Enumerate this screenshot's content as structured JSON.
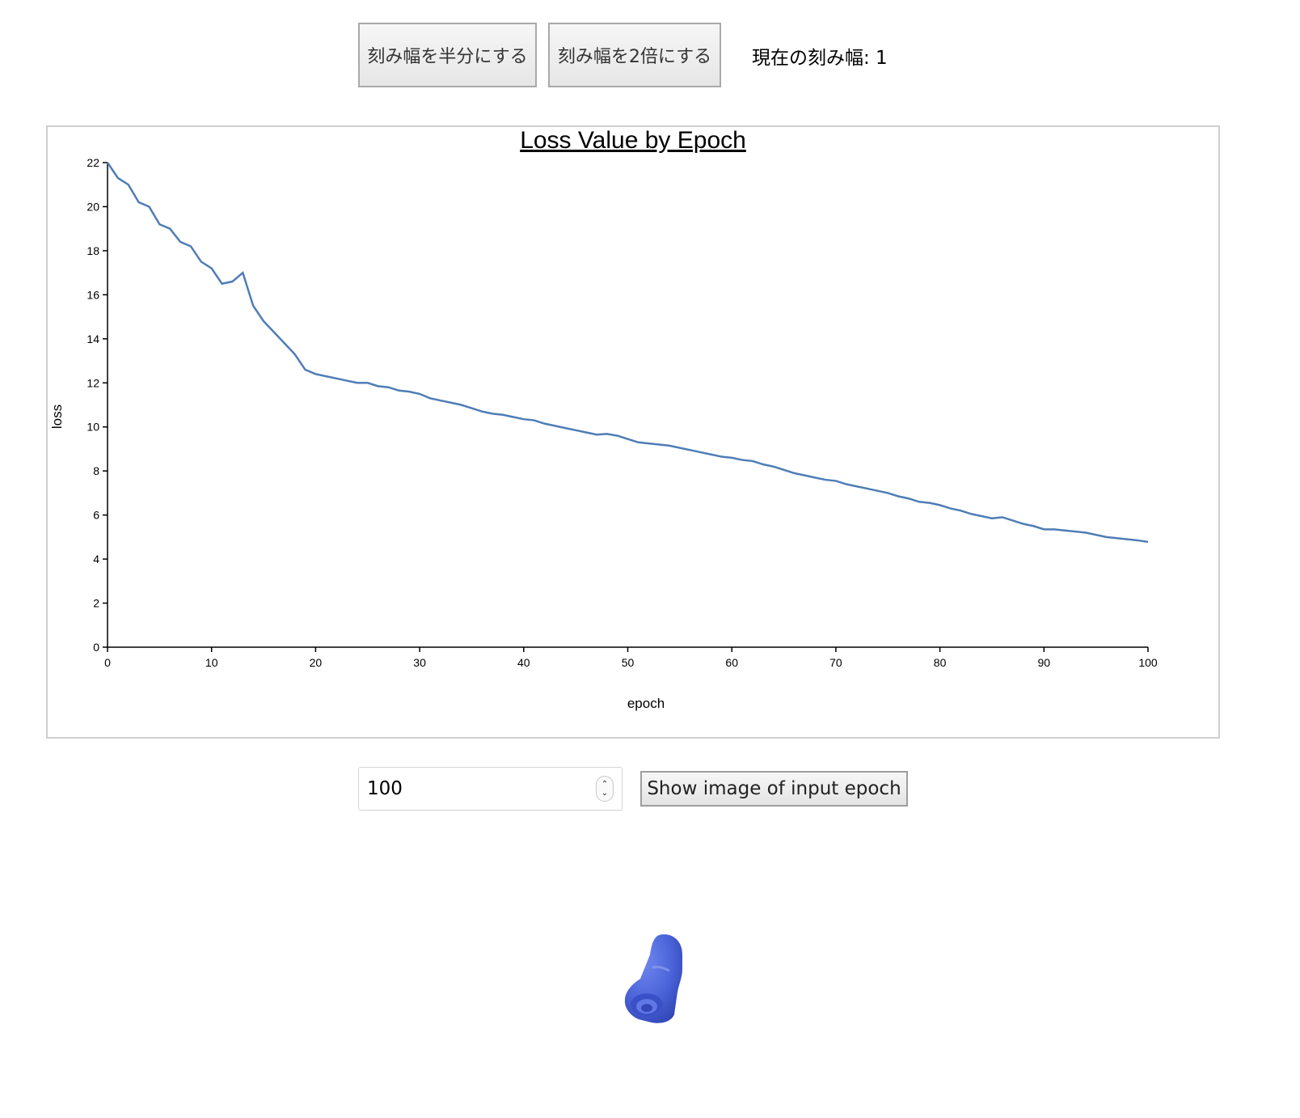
{
  "controls": {
    "halve_label": "刻み幅を半分にする",
    "double_label": "刻み幅を2倍にする",
    "step_status": "現在の刻み幅: 1"
  },
  "epoch_form": {
    "input_value": "100",
    "show_label": "Show image of input epoch"
  },
  "colors": {
    "line": "#4f7db5",
    "object": "#4a63d8"
  },
  "chart_data": {
    "type": "line",
    "title": "Loss Value by Epoch",
    "xlabel": "epoch",
    "ylabel": "loss",
    "xlim": [
      0,
      100
    ],
    "ylim": [
      0,
      22
    ],
    "xticks": [
      0,
      10,
      20,
      30,
      40,
      50,
      60,
      70,
      80,
      90,
      100
    ],
    "yticks": [
      0,
      2,
      4,
      6,
      8,
      10,
      12,
      14,
      16,
      18,
      20,
      22
    ],
    "grid": false,
    "x": [
      0,
      1,
      2,
      3,
      4,
      5,
      6,
      7,
      8,
      9,
      10,
      11,
      12,
      13,
      14,
      15,
      16,
      17,
      18,
      19,
      20,
      21,
      22,
      23,
      24,
      25,
      26,
      27,
      28,
      29,
      30,
      31,
      32,
      33,
      34,
      35,
      36,
      37,
      38,
      39,
      40,
      41,
      42,
      43,
      44,
      45,
      46,
      47,
      48,
      49,
      50,
      51,
      52,
      53,
      54,
      55,
      56,
      57,
      58,
      59,
      60,
      61,
      62,
      63,
      64,
      65,
      66,
      67,
      68,
      69,
      70,
      71,
      72,
      73,
      74,
      75,
      76,
      77,
      78,
      79,
      80,
      81,
      82,
      83,
      84,
      85,
      86,
      87,
      88,
      89,
      90,
      91,
      92,
      93,
      94,
      95,
      96,
      97,
      98,
      99,
      100
    ],
    "series": [
      {
        "values": [
          22.0,
          21.3,
          21.0,
          20.2,
          20.0,
          19.2,
          19.0,
          18.4,
          18.2,
          17.5,
          17.2,
          16.5,
          16.6,
          17.0,
          15.5,
          14.8,
          14.3,
          13.8,
          13.3,
          12.6,
          12.4,
          12.3,
          12.2,
          12.1,
          12.0,
          12.0,
          11.85,
          11.8,
          11.65,
          11.6,
          11.5,
          11.3,
          11.2,
          11.1,
          11.0,
          10.85,
          10.7,
          10.6,
          10.55,
          10.45,
          10.35,
          10.3,
          10.15,
          10.05,
          9.95,
          9.85,
          9.75,
          9.65,
          9.68,
          9.6,
          9.45,
          9.3,
          9.25,
          9.2,
          9.15,
          9.05,
          8.95,
          8.85,
          8.75,
          8.65,
          8.6,
          8.5,
          8.45,
          8.3,
          8.2,
          8.05,
          7.9,
          7.8,
          7.7,
          7.6,
          7.55,
          7.4,
          7.3,
          7.2,
          7.1,
          7.0,
          6.85,
          6.75,
          6.6,
          6.55,
          6.45,
          6.3,
          6.2,
          6.05,
          5.95,
          5.85,
          5.9,
          5.75,
          5.6,
          5.5,
          5.35,
          5.35,
          5.3,
          5.25,
          5.2,
          5.1,
          5.0,
          4.95,
          4.9,
          4.85,
          4.78
        ]
      }
    ]
  }
}
